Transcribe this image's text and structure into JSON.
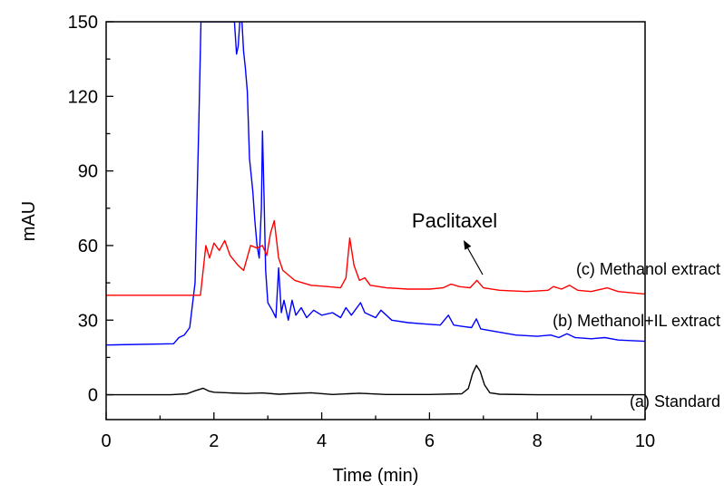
{
  "chart_data": {
    "type": "line",
    "title": "",
    "xlabel": "Time (min)",
    "ylabel": "mAU",
    "xlim": [
      0,
      10
    ],
    "ylim": [
      -10,
      150
    ],
    "xticks": [
      "0",
      "2",
      "4",
      "6",
      "8",
      "10"
    ],
    "yticks": [
      "0",
      "30",
      "60",
      "90",
      "120",
      "150"
    ],
    "grid": false,
    "legend": "none",
    "annotation": {
      "text": "Paclitaxel",
      "x": 6.8,
      "y": 45
    },
    "series": [
      {
        "name": "(a) Standard",
        "color": "#000000",
        "points": [
          [
            0,
            0
          ],
          [
            1.2,
            0
          ],
          [
            1.5,
            0.4
          ],
          [
            1.65,
            1.6
          ],
          [
            1.8,
            2.6
          ],
          [
            1.9,
            1.5
          ],
          [
            2.0,
            1.0
          ],
          [
            2.3,
            0.7
          ],
          [
            2.6,
            0.5
          ],
          [
            2.9,
            0.7
          ],
          [
            3.2,
            0.2
          ],
          [
            3.8,
            0.8
          ],
          [
            4.2,
            0.1
          ],
          [
            4.7,
            0.6
          ],
          [
            5.2,
            0.1
          ],
          [
            6.0,
            0.1
          ],
          [
            6.6,
            0.4
          ],
          [
            6.72,
            2.5
          ],
          [
            6.8,
            8.5
          ],
          [
            6.87,
            11.8
          ],
          [
            6.94,
            9.5
          ],
          [
            7.02,
            4
          ],
          [
            7.12,
            0.8
          ],
          [
            7.3,
            0.2
          ],
          [
            8,
            0
          ],
          [
            10,
            0
          ]
        ]
      },
      {
        "name": "(b) Methanol+IL extract",
        "color": "#0000ff",
        "points": [
          [
            0,
            20
          ],
          [
            1.25,
            20.5
          ],
          [
            1.35,
            23
          ],
          [
            1.45,
            24
          ],
          [
            1.55,
            27
          ],
          [
            1.65,
            45
          ],
          [
            1.72,
            110
          ],
          [
            1.76,
            150
          ],
          [
            2.38,
            150
          ],
          [
            2.42,
            137
          ],
          [
            2.45,
            140
          ],
          [
            2.48,
            150
          ],
          [
            2.52,
            150
          ],
          [
            2.55,
            138
          ],
          [
            2.58,
            132
          ],
          [
            2.62,
            122
          ],
          [
            2.66,
            95
          ],
          [
            2.72,
            82
          ],
          [
            2.76,
            70
          ],
          [
            2.8,
            60
          ],
          [
            2.84,
            55
          ],
          [
            2.88,
            75
          ],
          [
            2.9,
            106
          ],
          [
            2.93,
            80
          ],
          [
            2.96,
            50
          ],
          [
            3.0,
            37
          ],
          [
            3.08,
            34
          ],
          [
            3.15,
            31
          ],
          [
            3.2,
            51
          ],
          [
            3.25,
            33
          ],
          [
            3.3,
            38
          ],
          [
            3.38,
            30
          ],
          [
            3.45,
            38
          ],
          [
            3.52,
            32
          ],
          [
            3.62,
            35
          ],
          [
            3.72,
            31
          ],
          [
            3.85,
            34
          ],
          [
            4.0,
            32
          ],
          [
            4.2,
            33
          ],
          [
            4.35,
            31
          ],
          [
            4.45,
            35
          ],
          [
            4.55,
            32
          ],
          [
            4.72,
            37
          ],
          [
            4.8,
            33
          ],
          [
            5.0,
            31
          ],
          [
            5.1,
            34
          ],
          [
            5.3,
            30
          ],
          [
            5.6,
            29
          ],
          [
            5.9,
            28.5
          ],
          [
            6.2,
            28
          ],
          [
            6.35,
            32
          ],
          [
            6.45,
            28
          ],
          [
            6.6,
            27.5
          ],
          [
            6.78,
            27
          ],
          [
            6.87,
            30.5
          ],
          [
            6.95,
            26.5
          ],
          [
            7.2,
            25.5
          ],
          [
            7.6,
            24
          ],
          [
            8.0,
            23.5
          ],
          [
            8.25,
            24
          ],
          [
            8.4,
            23
          ],
          [
            8.55,
            24.5
          ],
          [
            8.7,
            23
          ],
          [
            9.0,
            22.5
          ],
          [
            9.25,
            23
          ],
          [
            9.5,
            22
          ],
          [
            10,
            21.5
          ]
        ]
      },
      {
        "name": "(c) Methanol extract",
        "color": "#ff0000",
        "points": [
          [
            0,
            40
          ],
          [
            1.75,
            40
          ],
          [
            1.8,
            50
          ],
          [
            1.85,
            60
          ],
          [
            1.92,
            55
          ],
          [
            2.0,
            61
          ],
          [
            2.1,
            58
          ],
          [
            2.2,
            62
          ],
          [
            2.3,
            56
          ],
          [
            2.45,
            52
          ],
          [
            2.55,
            50
          ],
          [
            2.68,
            60
          ],
          [
            2.8,
            59
          ],
          [
            2.9,
            60
          ],
          [
            2.98,
            56
          ],
          [
            3.05,
            65
          ],
          [
            3.12,
            70
          ],
          [
            3.2,
            55
          ],
          [
            3.28,
            50
          ],
          [
            3.5,
            46
          ],
          [
            3.8,
            44
          ],
          [
            4.1,
            43.5
          ],
          [
            4.35,
            43
          ],
          [
            4.45,
            47
          ],
          [
            4.52,
            63
          ],
          [
            4.6,
            52
          ],
          [
            4.7,
            46
          ],
          [
            4.8,
            47
          ],
          [
            4.9,
            44
          ],
          [
            5.2,
            43
          ],
          [
            5.6,
            42.5
          ],
          [
            6.0,
            42.5
          ],
          [
            6.25,
            43
          ],
          [
            6.4,
            44.5
          ],
          [
            6.55,
            43.5
          ],
          [
            6.75,
            43
          ],
          [
            6.88,
            46
          ],
          [
            7.0,
            43
          ],
          [
            7.3,
            42
          ],
          [
            7.8,
            41.5
          ],
          [
            8.2,
            42
          ],
          [
            8.3,
            43.5
          ],
          [
            8.45,
            42.5
          ],
          [
            8.6,
            44
          ],
          [
            8.75,
            42
          ],
          [
            9.0,
            41.5
          ],
          [
            9.3,
            43
          ],
          [
            9.5,
            41.5
          ],
          [
            10,
            40.5
          ]
        ]
      }
    ]
  }
}
